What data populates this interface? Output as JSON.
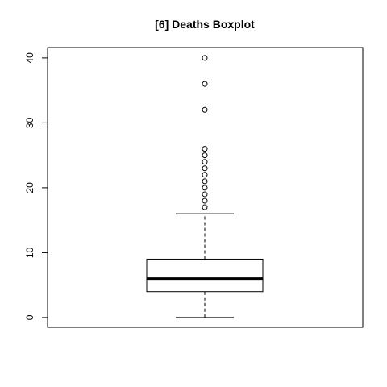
{
  "chart_data": {
    "type": "boxplot",
    "title": "[6] Deaths Boxplot",
    "xlabel": "",
    "ylabel": "",
    "ylim": [
      -1.5,
      41.6
    ],
    "y_ticks": [
      0,
      10,
      20,
      30,
      40
    ],
    "y_tick_labels": [
      "0",
      "10",
      "20",
      "30",
      "40"
    ],
    "grid": false,
    "box": {
      "whisker_low": 0,
      "q1": 4,
      "median": 6,
      "q3": 9,
      "whisker_high": 16
    },
    "outliers": [
      17,
      18,
      19,
      20,
      21,
      22,
      23,
      24,
      25,
      26,
      32,
      36,
      40
    ],
    "colors": {
      "box_fill": "#ffffff",
      "stroke": "#000000"
    }
  }
}
